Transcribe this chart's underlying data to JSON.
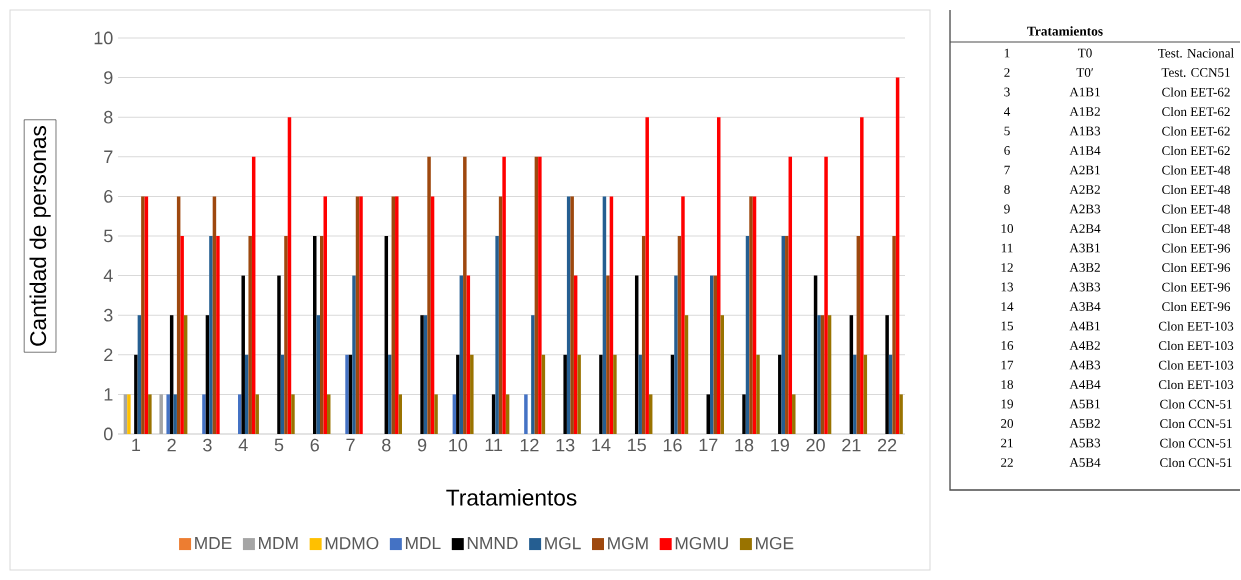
{
  "chart_data": {
    "type": "bar",
    "xlabel": "Tratamientos",
    "ylabel": "Cantidad de personas",
    "categories": [
      "1",
      "2",
      "3",
      "4",
      "5",
      "6",
      "7",
      "8",
      "9",
      "10",
      "11",
      "12",
      "13",
      "14",
      "15",
      "16",
      "17",
      "18",
      "19",
      "20",
      "21",
      "22"
    ],
    "series": [
      {
        "name": "MDE",
        "color": "#ed7d31",
        "values": [
          0,
          0,
          0,
          0,
          0,
          0,
          0,
          0,
          0,
          0,
          0,
          0,
          0,
          0,
          0,
          0,
          0,
          0,
          0,
          0,
          0,
          0
        ]
      },
      {
        "name": "MDM",
        "color": "#a5a5a5",
        "values": [
          1,
          1,
          0,
          0,
          0,
          0,
          0,
          0,
          0,
          0,
          0,
          0,
          0,
          0,
          0,
          0,
          0,
          0,
          0,
          0,
          0,
          0
        ]
      },
      {
        "name": "MDMO",
        "color": "#ffc000",
        "values": [
          1,
          0,
          0,
          0,
          0,
          0,
          0,
          0,
          0,
          0,
          0,
          0,
          0,
          0,
          0,
          0,
          0,
          0,
          0,
          0,
          0,
          0
        ]
      },
      {
        "name": "MDL",
        "color": "#4472c4",
        "values": [
          0,
          1,
          1,
          1,
          0,
          0,
          2,
          0,
          0,
          1,
          0,
          1,
          0,
          0,
          0,
          0,
          0,
          0,
          0,
          0,
          0,
          0
        ]
      },
      {
        "name": "NMND",
        "color": "#000000",
        "values": [
          2,
          3,
          3,
          4,
          4,
          5,
          2,
          5,
          3,
          2,
          1,
          0,
          2,
          2,
          4,
          2,
          1,
          1,
          2,
          4,
          3,
          3
        ]
      },
      {
        "name": "MGL",
        "color": "#255e91",
        "values": [
          3,
          1,
          5,
          2,
          2,
          3,
          4,
          2,
          3,
          4,
          5,
          3,
          6,
          6,
          2,
          4,
          4,
          5,
          5,
          3,
          2,
          2
        ]
      },
      {
        "name": "MGM",
        "color": "#9e480e",
        "values": [
          6,
          6,
          6,
          5,
          5,
          5,
          6,
          6,
          7,
          7,
          6,
          7,
          6,
          4,
          5,
          5,
          4,
          6,
          5,
          3,
          5,
          5
        ]
      },
      {
        "name": "MGMU",
        "color": "#ff0000",
        "values": [
          6,
          5,
          5,
          7,
          8,
          6,
          6,
          6,
          6,
          4,
          7,
          7,
          4,
          6,
          8,
          6,
          8,
          6,
          7,
          7,
          8,
          9
        ]
      },
      {
        "name": "MGE",
        "color": "#997300",
        "values": [
          1,
          3,
          0,
          1,
          1,
          1,
          0,
          1,
          1,
          2,
          1,
          2,
          2,
          2,
          1,
          3,
          3,
          2,
          1,
          3,
          2,
          1
        ]
      }
    ],
    "ylim": [
      0,
      10
    ],
    "yticks": [
      0,
      1,
      2,
      3,
      4,
      5,
      6,
      7,
      8,
      9,
      10
    ],
    "grid": "y",
    "legend": "bottom",
    "annotations": [
      "Tratamientos",
      "1",
      "T0",
      "Test. Nacional",
      "2",
      "T0′",
      "Test. CCN51",
      "3",
      "A1B1",
      "Clon EET-62",
      "4",
      "A1B2",
      "Clon EET-62",
      "5",
      "A1B3",
      "Clon EET-62",
      "6",
      "A1B4",
      "Clon EET-62",
      "7",
      "A2B1",
      "Clon EET-48",
      "8",
      "A2B2",
      "Clon EET-48",
      "9",
      "A2B3",
      "Clon EET-48",
      "10",
      "A2B4",
      "Clon EET-48",
      "11",
      "A3B1",
      "Clon EET-96",
      "12",
      "A3B2",
      "Clon EET-96",
      "13",
      "A3B3",
      "Clon EET-96",
      "14",
      "A3B4",
      "Clon EET-96",
      "15",
      "A4B1",
      "Clon EET-103",
      "16",
      "A4B2",
      "Clon EET-103",
      "17",
      "A4B3",
      "Clon EET-103",
      "18",
      "A4B4",
      "Clon EET-103",
      "19",
      "A5B1",
      "Clon CCN-51",
      "20",
      "A5B2",
      "Clon CCN-51",
      "21",
      "A5B3",
      "Clon CCN-51",
      "22",
      "A5B4",
      "Clon CCN-51"
    ]
  }
}
